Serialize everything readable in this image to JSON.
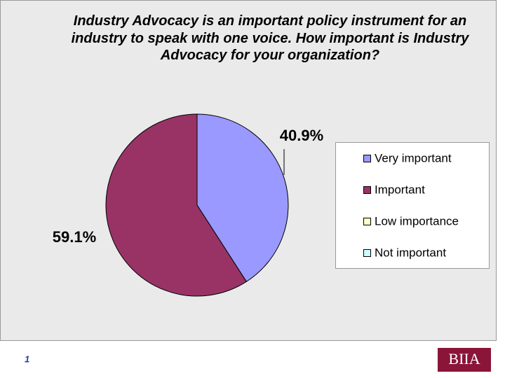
{
  "chart_data": {
    "type": "pie",
    "title": "Industry Advocacy is an important policy instrument for an industry to speak with one voice. How important is Industry Advocacy for your organization?",
    "categories": [
      "Very important",
      "Important",
      "Low importance",
      "Not important"
    ],
    "values": [
      40.9,
      59.1,
      0,
      0
    ],
    "value_labels": [
      "40.9%",
      "59.1%",
      null,
      null
    ],
    "colors": [
      "#9999ff",
      "#993366",
      "#ffffcc",
      "#ccffff"
    ],
    "legend": "right"
  },
  "slide": {
    "page_number": "1",
    "logo": "BIIA"
  }
}
